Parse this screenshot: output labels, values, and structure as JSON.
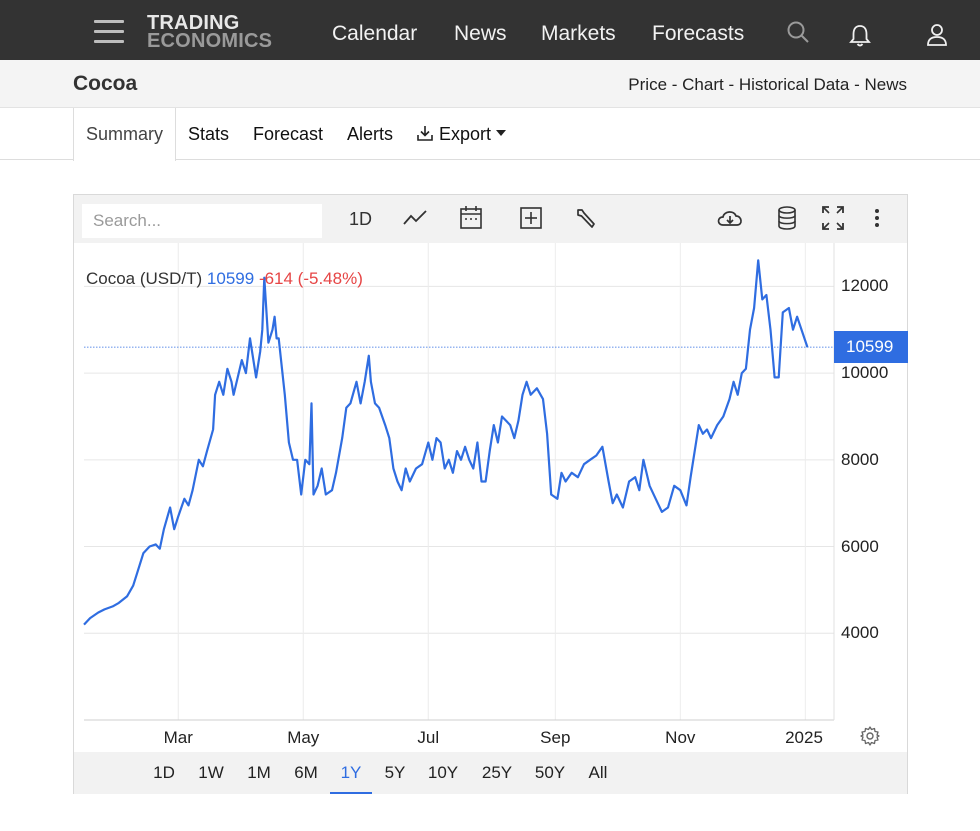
{
  "nav": {
    "logo_line1": "TRADING",
    "logo_line2": "ECONOMICS",
    "links": [
      "Calendar",
      "News",
      "Markets",
      "Forecasts"
    ]
  },
  "page": {
    "title": "Cocoa",
    "sublinks": [
      "Price",
      "Chart",
      "Historical Data",
      "News"
    ],
    "separator": " - "
  },
  "tabs": [
    "Summary",
    "Stats",
    "Forecast",
    "Alerts",
    "Export"
  ],
  "toolbar": {
    "search_placeholder": "Search...",
    "interval": "1D"
  },
  "legend": {
    "name": "Cocoa (USD/T)",
    "value": "10599",
    "change": "-614 (-5.48%)"
  },
  "price_badge": "10599",
  "ranges": [
    "1D",
    "1W",
    "1M",
    "6M",
    "1Y",
    "5Y",
    "10Y",
    "25Y",
    "50Y",
    "All"
  ],
  "active_range": "1Y",
  "colors": {
    "line": "#2f6de1",
    "negative": "#e64545",
    "topbar": "#333333"
  },
  "chart_data": {
    "type": "line",
    "series": [
      {
        "name": "Cocoa (USD/T)",
        "points": [
          [
            "2024-01-15",
            4200
          ],
          [
            "2024-01-18",
            4350
          ],
          [
            "2024-01-22",
            4480
          ],
          [
            "2024-01-25",
            4550
          ],
          [
            "2024-01-29",
            4620
          ],
          [
            "2024-02-01",
            4700
          ],
          [
            "2024-02-05",
            4850
          ],
          [
            "2024-02-08",
            5100
          ],
          [
            "2024-02-10",
            5400
          ],
          [
            "2024-02-13",
            5850
          ],
          [
            "2024-02-16",
            6000
          ],
          [
            "2024-02-19",
            6050
          ],
          [
            "2024-02-21",
            5950
          ],
          [
            "2024-02-23",
            6400
          ],
          [
            "2024-02-26",
            6900
          ],
          [
            "2024-02-28",
            6400
          ],
          [
            "2024-03-01",
            6700
          ],
          [
            "2024-03-04",
            7100
          ],
          [
            "2024-03-06",
            6950
          ],
          [
            "2024-03-08",
            7300
          ],
          [
            "2024-03-11",
            8000
          ],
          [
            "2024-03-13",
            7850
          ],
          [
            "2024-03-15",
            8200
          ],
          [
            "2024-03-18",
            8700
          ],
          [
            "2024-03-19",
            9500
          ],
          [
            "2024-03-21",
            9800
          ],
          [
            "2024-03-23",
            9500
          ],
          [
            "2024-03-25",
            10100
          ],
          [
            "2024-03-27",
            9800
          ],
          [
            "2024-03-28",
            9500
          ],
          [
            "2024-04-01",
            10300
          ],
          [
            "2024-04-03",
            10000
          ],
          [
            "2024-04-05",
            10800
          ],
          [
            "2024-04-08",
            9900
          ],
          [
            "2024-04-10",
            10500
          ],
          [
            "2024-04-11",
            11000
          ],
          [
            "2024-04-12",
            12200
          ],
          [
            "2024-04-14",
            10700
          ],
          [
            "2024-04-16",
            11000
          ],
          [
            "2024-04-17",
            11300
          ],
          [
            "2024-04-18",
            10800
          ],
          [
            "2024-04-19",
            10800
          ],
          [
            "2024-04-22",
            9500
          ],
          [
            "2024-04-24",
            8400
          ],
          [
            "2024-04-26",
            8000
          ],
          [
            "2024-04-28",
            8000
          ],
          [
            "2024-04-30",
            7200
          ],
          [
            "2024-05-02",
            8000
          ],
          [
            "2024-05-04",
            7900
          ],
          [
            "2024-05-05",
            9300
          ],
          [
            "2024-05-06",
            7200
          ],
          [
            "2024-05-08",
            7400
          ],
          [
            "2024-05-10",
            7800
          ],
          [
            "2024-05-12",
            7200
          ],
          [
            "2024-05-15",
            7300
          ],
          [
            "2024-05-17",
            7700
          ],
          [
            "2024-05-20",
            8500
          ],
          [
            "2024-05-22",
            9200
          ],
          [
            "2024-05-24",
            9300
          ],
          [
            "2024-05-27",
            9800
          ],
          [
            "2024-05-29",
            9300
          ],
          [
            "2024-05-31",
            9800
          ],
          [
            "2024-06-02",
            10400
          ],
          [
            "2024-06-03",
            9800
          ],
          [
            "2024-06-05",
            9300
          ],
          [
            "2024-06-07",
            9200
          ],
          [
            "2024-06-10",
            8800
          ],
          [
            "2024-06-12",
            8500
          ],
          [
            "2024-06-14",
            7800
          ],
          [
            "2024-06-16",
            7500
          ],
          [
            "2024-06-18",
            7300
          ],
          [
            "2024-06-20",
            7800
          ],
          [
            "2024-06-22",
            7500
          ],
          [
            "2024-06-25",
            7800
          ],
          [
            "2024-06-28",
            7900
          ],
          [
            "2024-07-01",
            8400
          ],
          [
            "2024-07-03",
            8000
          ],
          [
            "2024-07-05",
            8500
          ],
          [
            "2024-07-07",
            8400
          ],
          [
            "2024-07-09",
            7800
          ],
          [
            "2024-07-11",
            8000
          ],
          [
            "2024-07-13",
            7700
          ],
          [
            "2024-07-15",
            8200
          ],
          [
            "2024-07-17",
            8000
          ],
          [
            "2024-07-19",
            8300
          ],
          [
            "2024-07-21",
            8000
          ],
          [
            "2024-07-23",
            7800
          ],
          [
            "2024-07-25",
            8400
          ],
          [
            "2024-07-27",
            7500
          ],
          [
            "2024-07-29",
            7500
          ],
          [
            "2024-07-31",
            8200
          ],
          [
            "2024-08-02",
            8800
          ],
          [
            "2024-08-04",
            8400
          ],
          [
            "2024-08-06",
            9000
          ],
          [
            "2024-08-08",
            8900
          ],
          [
            "2024-08-10",
            8800
          ],
          [
            "2024-08-12",
            8500
          ],
          [
            "2024-08-14",
            8900
          ],
          [
            "2024-08-16",
            9500
          ],
          [
            "2024-08-18",
            9800
          ],
          [
            "2024-08-20",
            9500
          ],
          [
            "2024-08-23",
            9650
          ],
          [
            "2024-08-26",
            9400
          ],
          [
            "2024-08-28",
            8600
          ],
          [
            "2024-08-30",
            7200
          ],
          [
            "2024-09-02",
            7100
          ],
          [
            "2024-09-04",
            7700
          ],
          [
            "2024-09-06",
            7500
          ],
          [
            "2024-09-09",
            7700
          ],
          [
            "2024-09-12",
            7600
          ],
          [
            "2024-09-15",
            7900
          ],
          [
            "2024-09-18",
            8000
          ],
          [
            "2024-09-21",
            8100
          ],
          [
            "2024-09-24",
            8300
          ],
          [
            "2024-09-27",
            7500
          ],
          [
            "2024-09-29",
            7000
          ],
          [
            "2024-10-01",
            7200
          ],
          [
            "2024-10-04",
            6900
          ],
          [
            "2024-10-07",
            7500
          ],
          [
            "2024-10-10",
            7600
          ],
          [
            "2024-10-12",
            7300
          ],
          [
            "2024-10-14",
            8000
          ],
          [
            "2024-10-17",
            7400
          ],
          [
            "2024-10-20",
            7100
          ],
          [
            "2024-10-23",
            6800
          ],
          [
            "2024-10-26",
            6900
          ],
          [
            "2024-10-29",
            7400
          ],
          [
            "2024-11-01",
            7300
          ],
          [
            "2024-11-04",
            6950
          ],
          [
            "2024-11-06",
            7600
          ],
          [
            "2024-11-08",
            8200
          ],
          [
            "2024-11-10",
            8800
          ],
          [
            "2024-11-12",
            8600
          ],
          [
            "2024-11-14",
            8700
          ],
          [
            "2024-11-16",
            8500
          ],
          [
            "2024-11-19",
            8800
          ],
          [
            "2024-11-22",
            9000
          ],
          [
            "2024-11-25",
            9400
          ],
          [
            "2024-11-27",
            9800
          ],
          [
            "2024-11-29",
            9500
          ],
          [
            "2024-12-01",
            10000
          ],
          [
            "2024-12-03",
            10100
          ],
          [
            "2024-12-05",
            11000
          ],
          [
            "2024-12-07",
            11500
          ],
          [
            "2024-12-09",
            12600
          ],
          [
            "2024-12-11",
            11700
          ],
          [
            "2024-12-13",
            11800
          ],
          [
            "2024-12-15",
            11000
          ],
          [
            "2024-12-17",
            9900
          ],
          [
            "2024-12-19",
            9900
          ],
          [
            "2024-12-21",
            11400
          ],
          [
            "2024-12-24",
            11500
          ],
          [
            "2024-12-26",
            11000
          ],
          [
            "2024-12-28",
            11300
          ],
          [
            "2025-01-02",
            10600
          ]
        ]
      }
    ],
    "current_value": 10599,
    "y_ticks": [
      4000,
      6000,
      8000,
      10000,
      12000
    ],
    "x_ticks": [
      "Mar",
      "May",
      "Jul",
      "Sep",
      "Nov",
      "2025"
    ],
    "x_tick_dates": [
      "2024-03-01",
      "2024-05-01",
      "2024-07-01",
      "2024-09-01",
      "2024-11-01",
      "2025-01-01"
    ],
    "ylim": [
      2000,
      13000
    ],
    "xlim": [
      "2024-01-15",
      "2025-01-15"
    ],
    "grid": true
  }
}
